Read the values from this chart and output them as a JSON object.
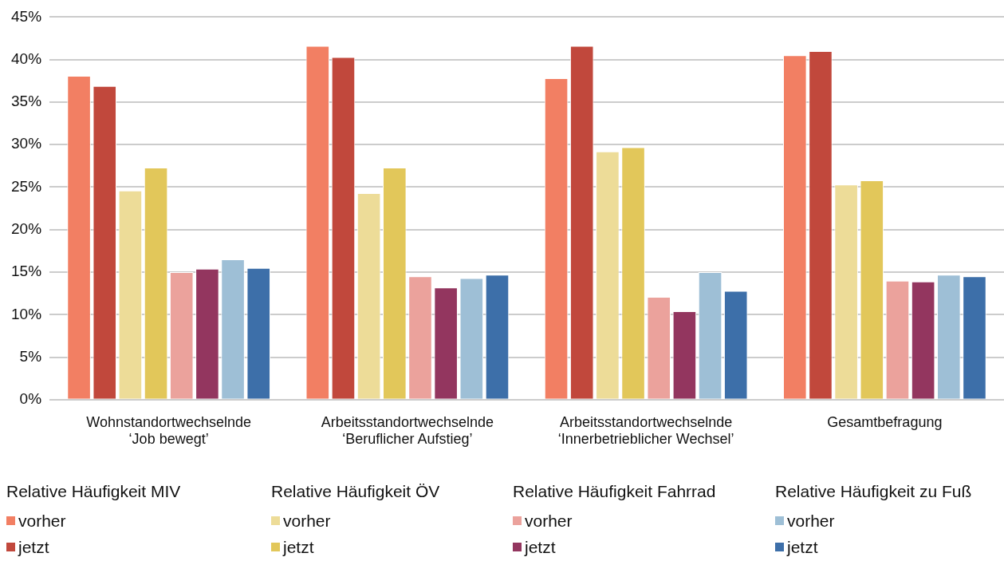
{
  "chart_data": {
    "type": "bar",
    "categories": [
      "Wohnstandortwechselnde\n‘Job bewegt’",
      "Arbeitsstandortwechselnde\n‘Beruflicher Aufstieg’",
      "Arbeitsstandortwechselnde\n‘Innerbetrieblicher Wechsel’",
      "Gesamtbefragung"
    ],
    "legend_title": [
      "Relative Häufigkeit MIV",
      "Relative Häufigkeit ÖV",
      "Relative Häufigkeit Fahrrad",
      "Relative Häufigkeit zu Fuß"
    ],
    "series": [
      {
        "name": "vorher",
        "color": "#f27f63",
        "values": [
          38.1,
          41.6,
          37.8,
          40.5
        ]
      },
      {
        "name": "jetzt",
        "color": "#c1483c",
        "values": [
          36.9,
          40.3,
          41.6,
          41.0
        ]
      },
      {
        "name": "vorher",
        "color": "#eddc98",
        "values": [
          24.6,
          24.3,
          29.2,
          25.3
        ]
      },
      {
        "name": "jetzt",
        "color": "#e2c75a",
        "values": [
          27.3,
          27.3,
          29.7,
          25.8
        ]
      },
      {
        "name": "vorher",
        "color": "#eba29c",
        "values": [
          15.0,
          14.5,
          12.1,
          14.0
        ]
      },
      {
        "name": "jetzt",
        "color": "#93365f",
        "values": [
          15.4,
          13.2,
          10.4,
          13.9
        ]
      },
      {
        "name": "vorher",
        "color": "#9ebfd6",
        "values": [
          16.5,
          14.3,
          15.0,
          14.7
        ]
      },
      {
        "name": "jetzt",
        "color": "#3d6fa9",
        "values": [
          15.5,
          14.7,
          12.8,
          14.5
        ]
      }
    ],
    "ylim": [
      0,
      45
    ],
    "yticks": [
      {
        "value": 0,
        "label": "0%"
      },
      {
        "value": 5,
        "label": "5%"
      },
      {
        "value": 10,
        "label": "10%"
      },
      {
        "value": 15,
        "label": "15%"
      },
      {
        "value": 20,
        "label": "20%"
      },
      {
        "value": 25,
        "label": "25%"
      },
      {
        "value": 30,
        "label": "30%"
      },
      {
        "value": 35,
        "label": "35%"
      },
      {
        "value": 40,
        "label": "40%"
      },
      {
        "value": 45,
        "label": "45%"
      }
    ],
    "grid": "y",
    "legend": "bottom"
  }
}
